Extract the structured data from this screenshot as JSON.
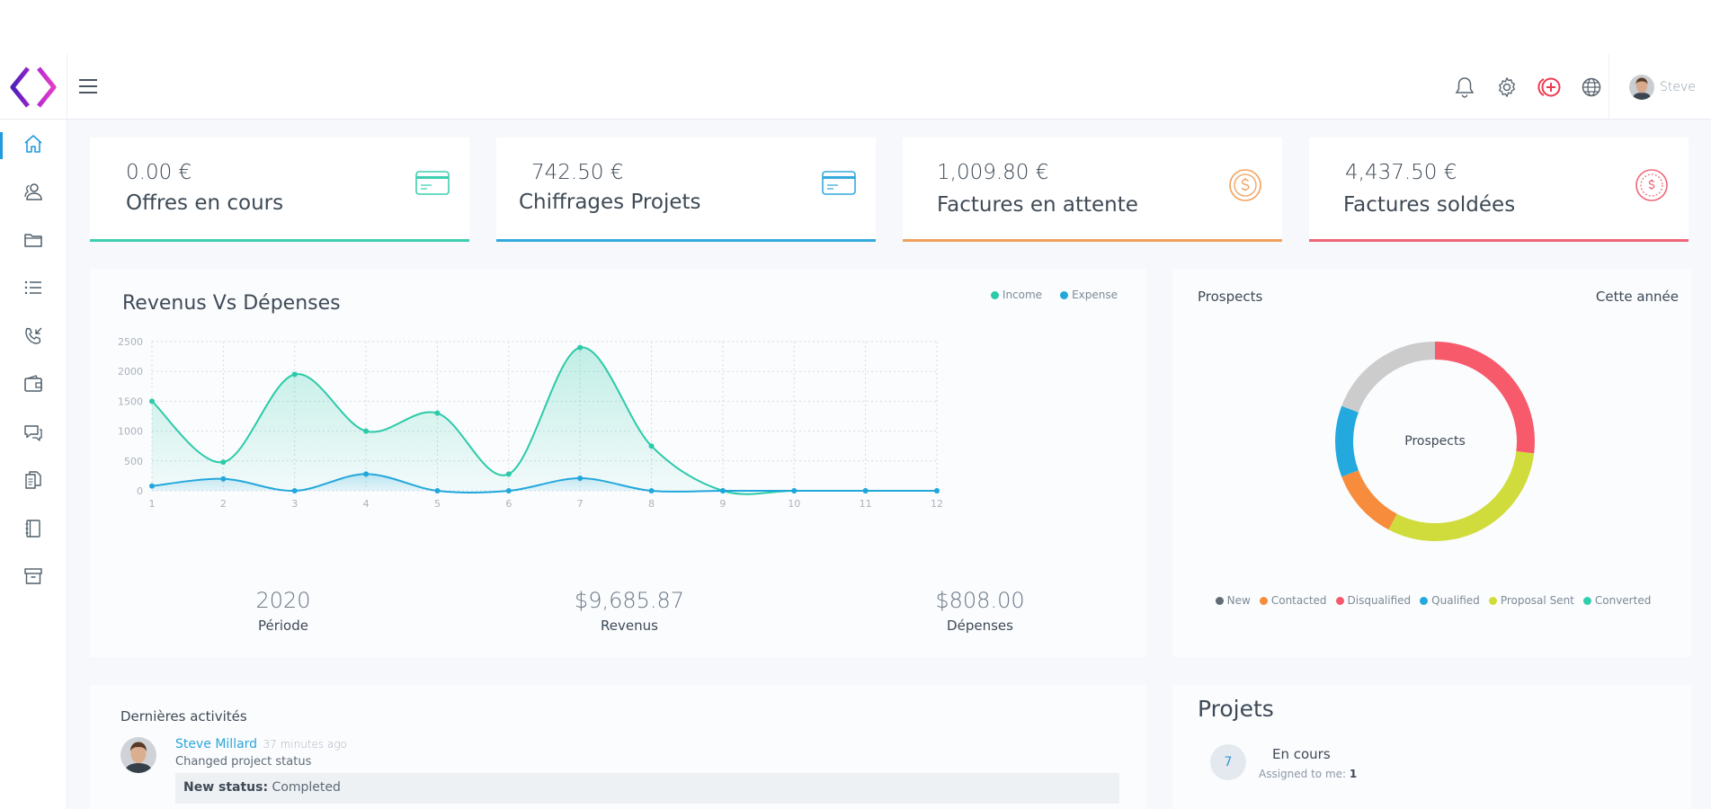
{
  "user": {
    "name": "Steve"
  },
  "stats": [
    {
      "value": "0.00 €",
      "label": "Offres en cours",
      "color": "#3fcfb0"
    },
    {
      "value": "742.50 €",
      "label": "Chiffrages Projets",
      "color": "#34a9de"
    },
    {
      "value": "1,009.80 €",
      "label": "Factures en attente",
      "color": "#f0a15c"
    },
    {
      "value": "4,437.50 €",
      "label": "Factures soldées",
      "color": "#ee6677"
    }
  ],
  "revenue": {
    "title": "Revenus Vs Dépenses",
    "legend": [
      "Income",
      "Expense"
    ],
    "summary": [
      {
        "value": "2020",
        "label": "Période"
      },
      {
        "value": "$9,685.87",
        "label": "Revenus"
      },
      {
        "value": "$808.00",
        "label": "Dépenses"
      }
    ]
  },
  "prospects": {
    "title": "Prospects",
    "range": "Cette année",
    "center": "Prospects",
    "legend": [
      "New",
      "Contacted",
      "Disqualified",
      "Qualified",
      "Proposal Sent",
      "Converted"
    ]
  },
  "activity": {
    "title": "Dernières activités",
    "author": "Steve Millard",
    "time": "37 minutes ago",
    "description": "Changed project status",
    "status_label": "New status:",
    "status_value": "Completed"
  },
  "projects": {
    "title": "Projets",
    "count": "7",
    "name": "En cours",
    "assigned_label": "Assigned to me:",
    "assigned_value": "1"
  },
  "chart_data": [
    {
      "type": "area",
      "title": "Revenus Vs Dépenses",
      "x": [
        1,
        2,
        3,
        4,
        5,
        6,
        7,
        8,
        9,
        10,
        11,
        12
      ],
      "ylim": [
        0,
        2500
      ],
      "yticks": [
        0,
        500,
        1000,
        1500,
        2000,
        2500
      ],
      "grid": true,
      "legend_position": "top-right",
      "series": [
        {
          "name": "Income",
          "color": "#2ccaa8",
          "values": [
            1500,
            480,
            1950,
            1000,
            1300,
            280,
            2400,
            750,
            0,
            0,
            0,
            0
          ]
        },
        {
          "name": "Expense",
          "color": "#22a7dc",
          "values": [
            80,
            200,
            0,
            280,
            0,
            0,
            210,
            0,
            0,
            0,
            0,
            0
          ]
        }
      ]
    },
    {
      "type": "pie",
      "title": "Prospects",
      "categories": [
        "Proposal Sent",
        "Contacted",
        "Qualified",
        "Unlabeled",
        "Disqualified"
      ],
      "values": [
        24,
        9,
        9,
        15,
        21
      ],
      "colors": [
        "#cfdc3b",
        "#f68c3c",
        "#24a9df",
        "#cccccc",
        "#f75a6b"
      ],
      "legend_colors": {
        "New": "#616b75",
        "Contacted": "#f68c3c",
        "Disqualified": "#f75a6b",
        "Qualified": "#24a9df",
        "Proposal Sent": "#cfdc3b",
        "Converted": "#2fcfae"
      }
    }
  ]
}
